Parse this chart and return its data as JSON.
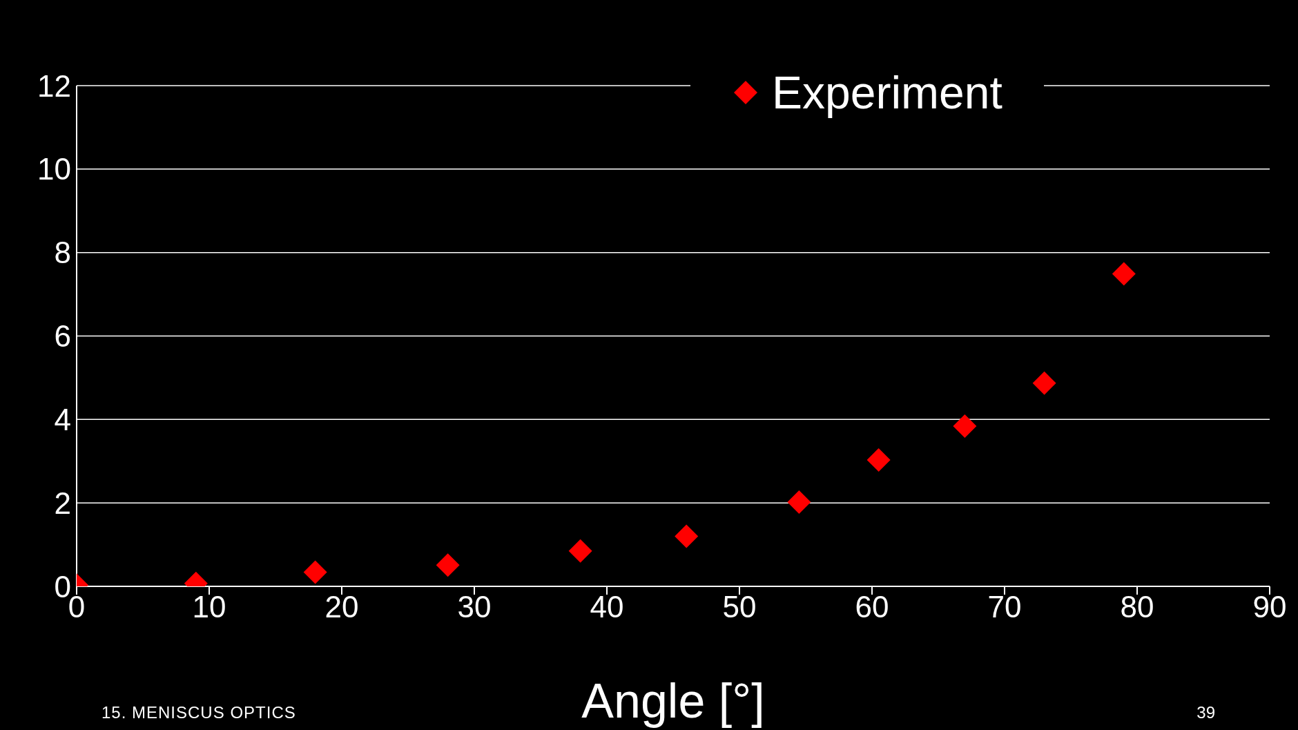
{
  "chart_data": {
    "type": "scatter",
    "xlabel": "Angle [°]",
    "x": [
      0,
      9,
      18,
      28,
      38,
      46,
      54.5,
      60.5,
      67,
      73,
      79
    ],
    "series": [
      {
        "name": "Experiment",
        "color": "#ff0000",
        "values": [
          0.03,
          0.07,
          0.34,
          0.51,
          0.85,
          1.2,
          2.02,
          3.03,
          3.84,
          4.87,
          7.49
        ]
      }
    ],
    "xlim": [
      0,
      90
    ],
    "xticks": [
      0,
      10,
      20,
      30,
      40,
      50,
      60,
      70,
      80,
      90
    ],
    "ylim": [
      0,
      12
    ],
    "yticks": [
      0,
      2,
      4,
      6,
      8,
      10,
      12
    ],
    "grid": "y",
    "legend": "top",
    "marker": "diamond",
    "annotations": [
      "15. MENISCUS OPTICS",
      "39"
    ]
  }
}
